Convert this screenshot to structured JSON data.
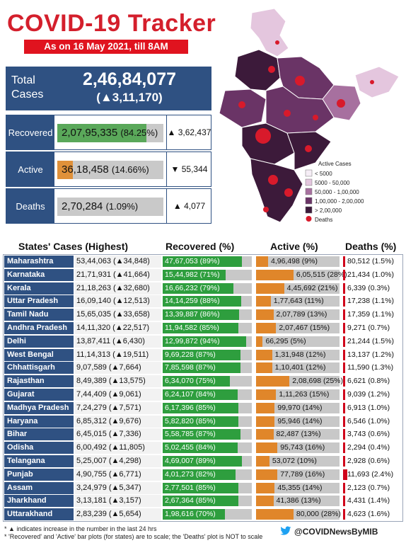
{
  "header": {
    "title": "COVID-19 Tracker",
    "subtitle": "As on 16 May 2021, till 8AM"
  },
  "summary": {
    "total_label": "Total Cases",
    "total_value": "2,46,84,077",
    "total_change": "(▲3,11,170)",
    "rows": [
      {
        "label": "Recovered",
        "value": "2,07,95,335",
        "pct": "(84.25%)",
        "fraction": 0.8425,
        "color": "#5aa85a",
        "change": "▲ 3,62,437"
      },
      {
        "label": "Active",
        "value": "36,18,458",
        "pct": "(14.66%)",
        "fraction": 0.1466,
        "color": "#e0913a",
        "change": "▼ 55,344"
      },
      {
        "label": "Deaths",
        "value": "2,70,284",
        "pct": "(1.09%)",
        "fraction": 0.0109,
        "color": "#c9c9c9",
        "change": "▲ 4,077"
      }
    ]
  },
  "map": {
    "legend_title": "Active Cases",
    "legend": [
      {
        "label": "< 5000",
        "color": "#f6eef6"
      },
      {
        "label": "5000 - 50,000",
        "color": "#e4c6de"
      },
      {
        "label": "50,000 - 1,00,000",
        "color": "#a7709f"
      },
      {
        "label": "1,00,000 - 2,00,000",
        "color": "#6a3466"
      },
      {
        "label": "> 2,00,000",
        "color": "#3c1a3a"
      }
    ],
    "deaths_label": "Deaths",
    "deaths_color": "#d81a2b"
  },
  "table": {
    "headers": {
      "states": "States' Cases (Highest)",
      "recovered": "Recovered (%)",
      "active": "Active (%)",
      "deaths": "Deaths (%)"
    },
    "rows": [
      {
        "state": "Maharashtra",
        "cases": "53,44,063 (▲34,848)",
        "recovered": "47,67,053 (89%)",
        "rec_frac": 0.89,
        "active": "4,96,498 (9%)",
        "act_frac": 0.09,
        "deaths": "80,512 (1.5%)"
      },
      {
        "state": "Karnataka",
        "cases": "21,71,931 (▲41,664)",
        "recovered": "15,44,982 (71%)",
        "rec_frac": 0.71,
        "active": "6,05,515 (28%)",
        "act_frac": 0.28,
        "deaths": "21,434 (1.0%)"
      },
      {
        "state": "Kerala",
        "cases": "21,18,263 (▲32,680)",
        "recovered": "16,66,232 (79%)",
        "rec_frac": 0.79,
        "active": "4,45,692 (21%)",
        "act_frac": 0.21,
        "deaths": "6,339 (0.3%)"
      },
      {
        "state": "Uttar Pradesh",
        "cases": "16,09,140 (▲12,513)",
        "recovered": "14,14,259 (88%)",
        "rec_frac": 0.88,
        "active": "1,77,643 (11%)",
        "act_frac": 0.11,
        "deaths": "17,238 (1.1%)"
      },
      {
        "state": "Tamil Nadu",
        "cases": "15,65,035 (▲33,658)",
        "recovered": "13,39,887 (86%)",
        "rec_frac": 0.86,
        "active": "2,07,789 (13%)",
        "act_frac": 0.13,
        "deaths": "17,359 (1.1%)"
      },
      {
        "state": "Andhra Pradesh",
        "cases": "14,11,320 (▲22,517)",
        "recovered": "11,94,582 (85%)",
        "rec_frac": 0.85,
        "active": "2,07,467 (15%)",
        "act_frac": 0.15,
        "deaths": "9,271 (0.7%)"
      },
      {
        "state": "Delhi",
        "cases": "13,87,411 (▲6,430)",
        "recovered": "12,99,872 (94%)",
        "rec_frac": 0.94,
        "active": "66,295 (5%)",
        "act_frac": 0.05,
        "deaths": "21,244 (1.5%)"
      },
      {
        "state": "West Bengal",
        "cases": "11,14,313 (▲19,511)",
        "recovered": "9,69,228 (87%)",
        "rec_frac": 0.87,
        "active": "1,31,948 (12%)",
        "act_frac": 0.12,
        "deaths": "13,137 (1.2%)"
      },
      {
        "state": "Chhattisgarh",
        "cases": "9,07,589 (▲7,664)",
        "recovered": "7,85,598 (87%)",
        "rec_frac": 0.87,
        "active": "1,10,401 (12%)",
        "act_frac": 0.12,
        "deaths": "11,590 (1.3%)"
      },
      {
        "state": "Rajasthan",
        "cases": "8,49,389 (▲13,575)",
        "recovered": "6,34,070 (75%)",
        "rec_frac": 0.75,
        "active": "2,08,698 (25%)",
        "act_frac": 0.25,
        "deaths": "6,621 (0.8%)"
      },
      {
        "state": "Gujarat",
        "cases": "7,44,409 (▲9,061)",
        "recovered": "6,24,107 (84%)",
        "rec_frac": 0.84,
        "active": "1,11,263 (15%)",
        "act_frac": 0.15,
        "deaths": "9,039 (1.2%)"
      },
      {
        "state": "Madhya Pradesh",
        "cases": "7,24,279 (▲7,571)",
        "recovered": "6,17,396 (85%)",
        "rec_frac": 0.85,
        "active": "99,970 (14%)",
        "act_frac": 0.14,
        "deaths": "6,913 (1.0%)"
      },
      {
        "state": "Haryana",
        "cases": "6,85,312 (▲9,676)",
        "recovered": "5,82,820 (85%)",
        "rec_frac": 0.85,
        "active": "95,946 (14%)",
        "act_frac": 0.14,
        "deaths": "6,546 (1.0%)"
      },
      {
        "state": "Bihar",
        "cases": "6,45,015 (▲7,336)",
        "recovered": "5,58,785 (87%)",
        "rec_frac": 0.87,
        "active": "82,487 (13%)",
        "act_frac": 0.13,
        "deaths": "3,743 (0.6%)"
      },
      {
        "state": "Odisha",
        "cases": "6,00,492 (▲11,805)",
        "recovered": "5,02,455 (84%)",
        "rec_frac": 0.84,
        "active": "95,743 (16%)",
        "act_frac": 0.16,
        "deaths": "2,294 (0.4%)"
      },
      {
        "state": "Telangana",
        "cases": "5,25,007 (▲4,298)",
        "recovered": "4,69,007 (89%)",
        "rec_frac": 0.89,
        "active": "53,072 (10%)",
        "act_frac": 0.1,
        "deaths": "2,928 (0.6%)"
      },
      {
        "state": "Punjab",
        "cases": "4,90,755 (▲6,771)",
        "recovered": "4,01,273 (82%)",
        "rec_frac": 0.82,
        "active": "77,789 (16%)",
        "act_frac": 0.16,
        "deaths": "11,693 (2.4%)"
      },
      {
        "state": "Assam",
        "cases": "3,24,979 (▲5,347)",
        "recovered": "2,77,501 (85%)",
        "rec_frac": 0.85,
        "active": "45,355 (14%)",
        "act_frac": 0.14,
        "deaths": "2,123 (0.7%)"
      },
      {
        "state": "Jharkhand",
        "cases": "3,13,181 (▲3,157)",
        "recovered": "2,67,364 (85%)",
        "rec_frac": 0.85,
        "active": "41,386 (13%)",
        "act_frac": 0.13,
        "deaths": "4,431 (1.4%)"
      },
      {
        "state": "Uttarakhand",
        "cases": "2,83,239 (▲5,654)",
        "recovered": "1,98,616 (70%)",
        "rec_frac": 0.7,
        "active": "80,000 (28%)",
        "act_frac": 0.28,
        "deaths": "4,623 (1.6%)"
      }
    ]
  },
  "footer": {
    "note1": "* ▲ indicates increase in the number in the last 24 hrs",
    "note2": "* 'Recovered' and 'Active' bar plots (for states) are to scale; the 'Deaths' plot is NOT to scale",
    "handle": "@COVIDNewsByMIB"
  },
  "colors": {
    "brand_red": "#d41f2c",
    "navy": "#2f5182",
    "recovered_green": "#2e9e3e",
    "active_orange": "#e0862a"
  }
}
